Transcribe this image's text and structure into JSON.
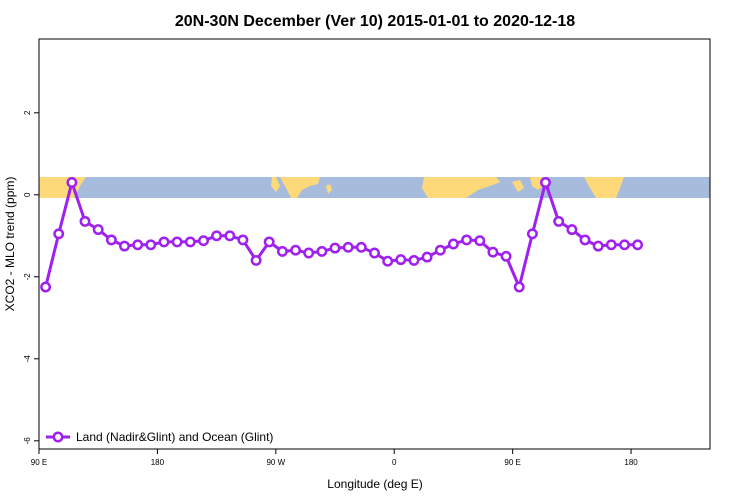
{
  "chart_data": {
    "type": "line",
    "title": "20N-30N December (Ver 10)   2015-01-01 to 2020-12-18",
    "xlabel": "Longitude (deg E)",
    "ylabel": "XCO2 - MLO trend (ppm)",
    "xlim": [
      90,
      600
    ],
    "ylim": [
      -6.2,
      3.8
    ],
    "x_ticks": [
      {
        "value": 90,
        "label": "90 E"
      },
      {
        "value": 180,
        "label": "180"
      },
      {
        "value": 270,
        "label": "90 W"
      },
      {
        "value": 360,
        "label": "0"
      },
      {
        "value": 450,
        "label": "90 E"
      },
      {
        "value": 540,
        "label": "180"
      }
    ],
    "y_ticks": [
      {
        "value": 2,
        "label": "2"
      },
      {
        "value": 0,
        "label": "0"
      },
      {
        "value": -2,
        "label": "-2"
      },
      {
        "value": -4,
        "label": "-4"
      },
      {
        "value": -6,
        "label": "-6"
      }
    ],
    "grid": false,
    "legend_position": "bottom-left",
    "colors": {
      "series": "#a020f0",
      "ocean": "#a7bcdd",
      "land": "#fdd97a"
    },
    "series": [
      {
        "name": "Land (Nadir&Glint) and Ocean (Glint)",
        "x": [
          95,
          105,
          115,
          125,
          135,
          145,
          155,
          165,
          175,
          185,
          195,
          205,
          215,
          225,
          235,
          245,
          255,
          265,
          275,
          285,
          295,
          305,
          315,
          325,
          335,
          345,
          355,
          365,
          375,
          385,
          395,
          405,
          415,
          425,
          435,
          445,
          455,
          465,
          475,
          485,
          495,
          505,
          515,
          525,
          535,
          545
        ],
        "y": [
          -2.25,
          -0.95,
          0.3,
          -0.65,
          -0.85,
          -1.1,
          -1.25,
          -1.22,
          -1.22,
          -1.15,
          -1.15,
          -1.15,
          -1.12,
          -1.0,
          -1.0,
          -1.1,
          -1.6,
          -1.15,
          -1.38,
          -1.35,
          -1.42,
          -1.38,
          -1.3,
          -1.28,
          -1.28,
          -1.42,
          -1.62,
          -1.58,
          -1.6,
          -1.52,
          -1.35,
          -1.2,
          -1.1,
          -1.12,
          -1.4,
          -1.5,
          -2.25,
          -0.95,
          0.3,
          -0.65,
          -0.85,
          -1.1,
          -1.25,
          -1.22,
          -1.22,
          -1.22
        ]
      }
    ]
  }
}
